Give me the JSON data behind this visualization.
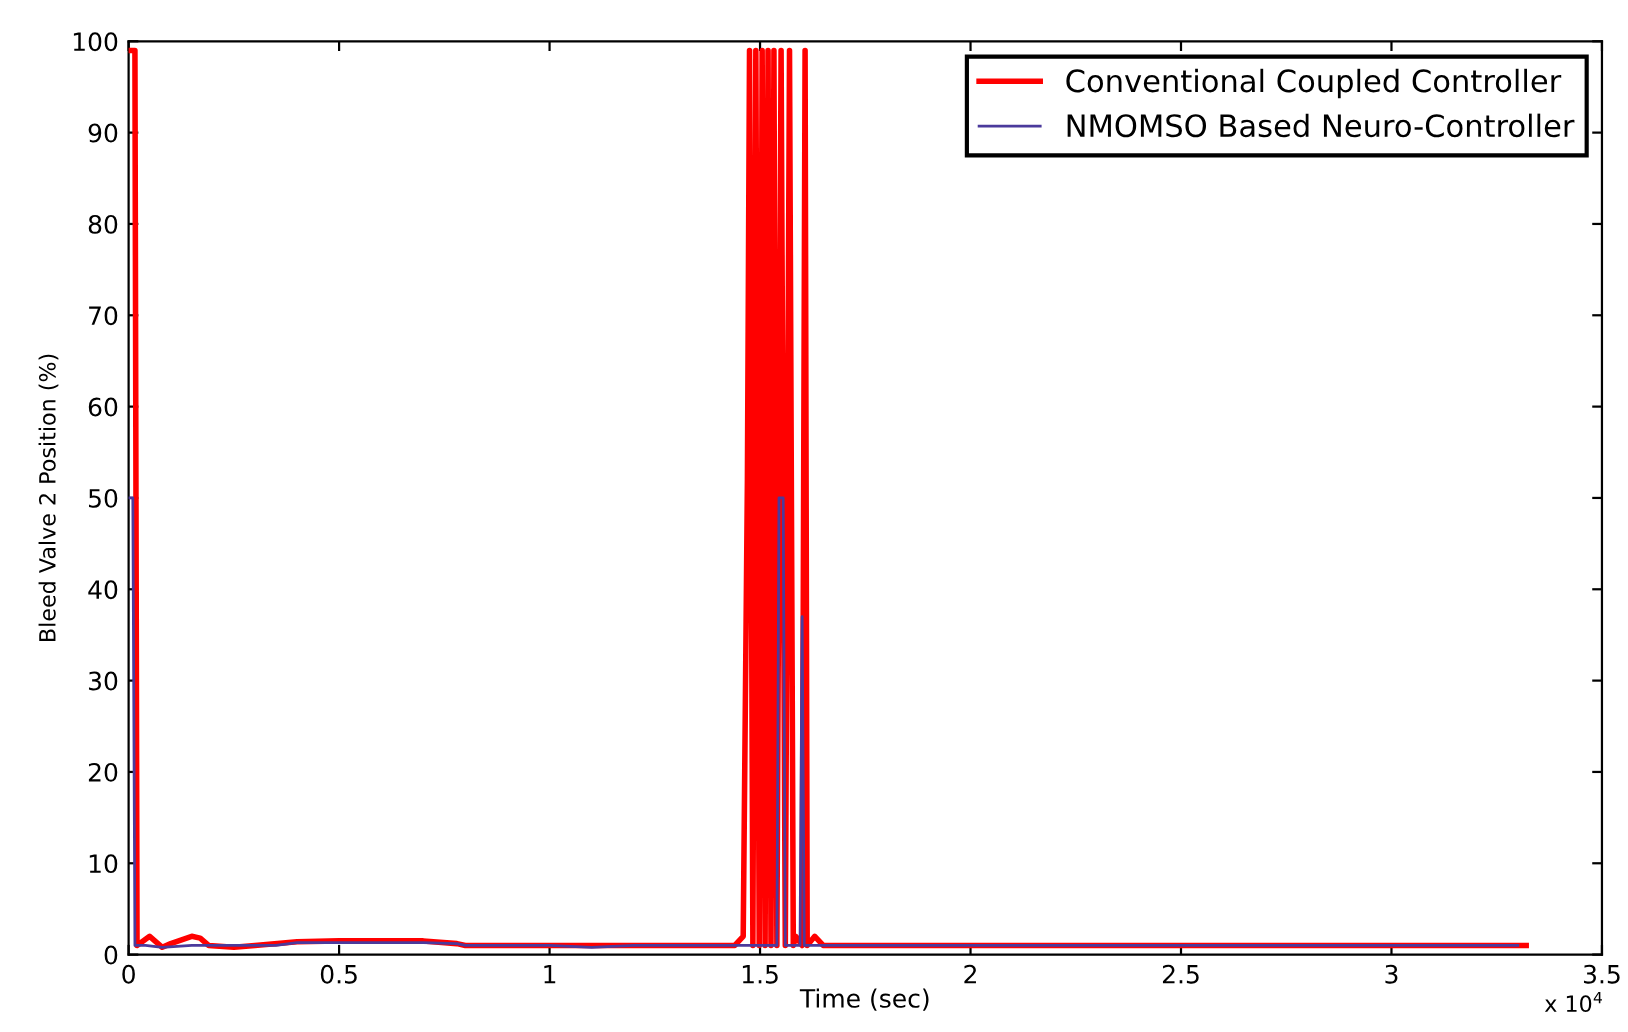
{
  "chart_data": {
    "type": "line",
    "xlabel": "Time (sec)",
    "ylabel": "Bleed Valve 2 Position (%)",
    "xlim": [
      0,
      3.5
    ],
    "ylim": [
      0,
      100
    ],
    "xticks": [
      0,
      0.5,
      1,
      1.5,
      2,
      2.5,
      3,
      3.5
    ],
    "yticks": [
      0,
      10,
      20,
      30,
      40,
      50,
      60,
      70,
      80,
      90,
      100
    ],
    "annotations": [
      "x 10$^{4}$"
    ],
    "legend": "top right",
    "grid": false,
    "marker": "none",
    "line_style": "solid",
    "series": [
      {
        "name": "NMOMSO Based Neuro-Controller",
        "color": "#4b3a9c",
        "x": [
          0,
          0.01,
          0.015,
          0.04,
          0.08,
          0.15,
          0.2,
          0.26,
          0.35,
          0.4,
          0.5,
          0.7,
          0.78,
          0.8,
          1.0,
          1.1,
          1.2,
          1.54,
          1.545,
          1.555,
          1.56,
          1.595,
          1.6,
          1.605,
          3.3
        ],
        "values": [
          50,
          50,
          1,
          1,
          0.8,
          1,
          1,
          1,
          1,
          1.3,
          1.3,
          1.3,
          1.2,
          1,
          1,
          0.8,
          1,
          1,
          50,
          50,
          1,
          1,
          37,
          1,
          1
        ]
      },
      {
        "name": "Conventional Coupled Controller",
        "color": "#ff0000",
        "x": [
          0,
          0.015,
          0.02,
          0.05,
          0.08,
          0.1,
          0.15,
          0.17,
          0.19,
          0.25,
          0.3,
          0.4,
          0.5,
          0.7,
          0.78,
          0.8,
          1.44,
          1.46,
          1.47,
          1.475,
          1.483,
          1.49,
          1.498,
          1.505,
          1.512,
          1.519,
          1.526,
          1.533,
          1.54,
          1.55,
          1.56,
          1.57,
          1.579,
          1.585,
          1.6,
          1.607,
          1.612,
          1.63,
          1.65,
          3.32
        ],
        "values": [
          99,
          99,
          1,
          2,
          0.8,
          1.2,
          2,
          1.8,
          1,
          0.8,
          1,
          1.4,
          1.5,
          1.5,
          1.2,
          1,
          1,
          2,
          52,
          99,
          1,
          99,
          1,
          99,
          1,
          99,
          1,
          99,
          1,
          99,
          1,
          99,
          1,
          2,
          1,
          99,
          1,
          2,
          1,
          1
        ]
      }
    ]
  }
}
